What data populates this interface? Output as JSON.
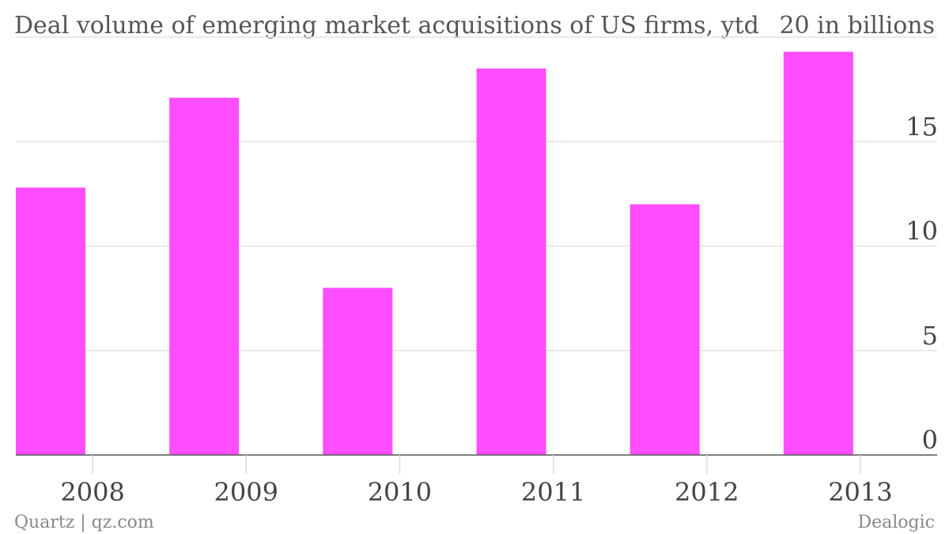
{
  "chart_data": {
    "type": "bar",
    "title": "Deal volume of emerging market acquisitions of US firms, ytd",
    "axis_top_label": "20 in billions",
    "categories": [
      "2008",
      "2009",
      "2010",
      "2011",
      "2012",
      "2013"
    ],
    "values": [
      12.8,
      17.1,
      8.0,
      18.5,
      12.0,
      19.3
    ],
    "ylim": [
      0,
      20
    ],
    "y_ticks": [
      "0",
      "5",
      "10",
      "15"
    ],
    "grid": true,
    "y_axis_position": "right",
    "bar_color": "#ff4dff"
  },
  "footer": {
    "credit": "Quartz | qz.com",
    "source": "Dealogic"
  }
}
